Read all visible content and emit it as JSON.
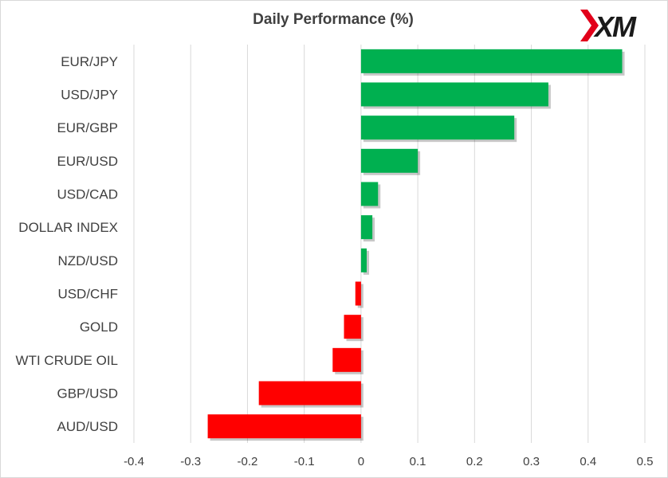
{
  "chart_data": {
    "type": "bar",
    "orientation": "horizontal",
    "title": "Daily Performance (%)",
    "xlabel": "",
    "ylabel": "",
    "categories": [
      "EUR/JPY",
      "USD/JPY",
      "EUR/GBP",
      "EUR/USD",
      "USD/CAD",
      "DOLLAR INDEX",
      "NZD/USD",
      "USD/CHF",
      "GOLD",
      "WTI CRUDE OIL",
      "GBP/USD",
      "AUD/USD"
    ],
    "values": [
      0.46,
      0.33,
      0.27,
      0.1,
      0.03,
      0.02,
      0.01,
      -0.01,
      -0.03,
      -0.05,
      -0.18,
      -0.27
    ],
    "xlim": [
      -0.4,
      0.5
    ],
    "xticks": [
      -0.4,
      -0.3,
      -0.2,
      -0.1,
      0,
      0.1,
      0.2,
      0.3,
      0.4,
      0.5
    ],
    "xtick_labels": [
      "-0.4",
      "-0.3",
      "-0.2",
      "-0.1",
      "0",
      "0.1",
      "0.2",
      "0.3",
      "0.4",
      "0.5"
    ],
    "grid": "vertical",
    "legend": "none",
    "colors": {
      "positive": "#00b050",
      "negative": "#ff0000",
      "grid": "#d9d9d9",
      "text": "#404040"
    }
  },
  "logo": {
    "text": "XM",
    "mark_color": "#e2001a",
    "text_color": "#1a1a1a"
  }
}
